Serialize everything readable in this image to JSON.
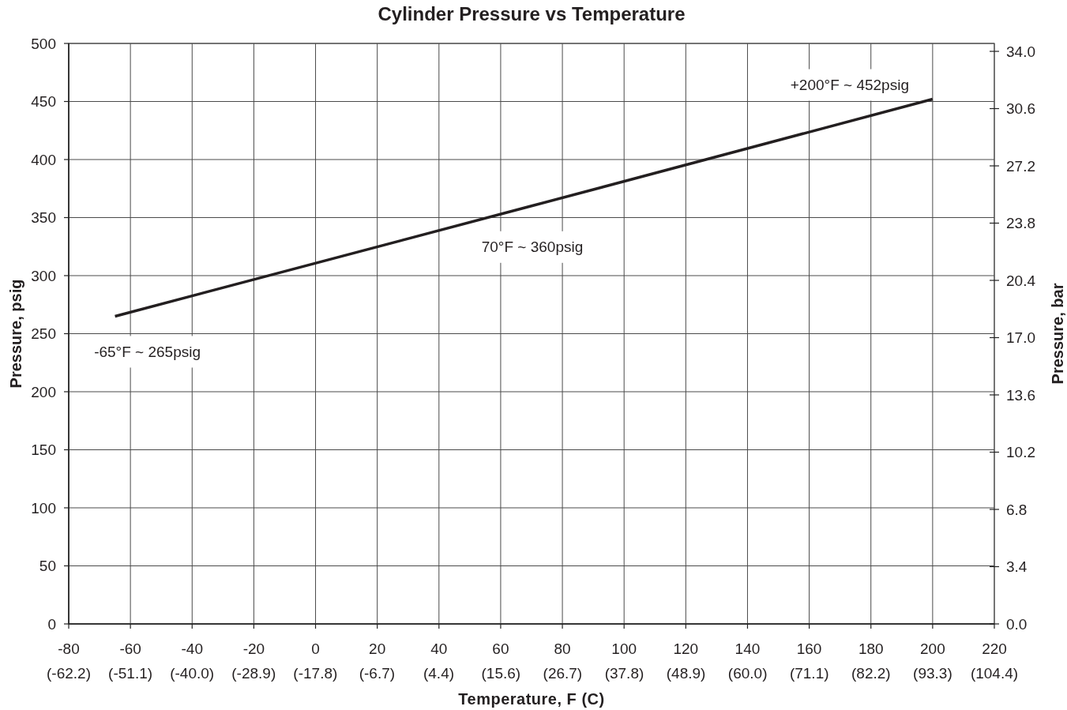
{
  "chart_data": {
    "type": "line",
    "title": "Cylinder Pressure vs Temperature",
    "xlabel": "Temperature, F (C)",
    "ylabel": "Pressure, psig",
    "y2label": "Pressure, bar",
    "x": [
      -65,
      70,
      200
    ],
    "values": [
      265,
      360,
      452
    ],
    "color": "#231f20",
    "line_style": "solid",
    "xlim": [
      -80,
      220
    ],
    "xticks": [
      -80,
      -60,
      -40,
      -20,
      0,
      20,
      40,
      60,
      80,
      100,
      120,
      140,
      160,
      180,
      200,
      220
    ],
    "x2lim": [
      -62.2,
      104.4
    ],
    "x2ticks": [
      {
        "value": -62.2,
        "label": "(-62.2)"
      },
      {
        "value": -51.1,
        "label": "(-51.1)"
      },
      {
        "value": -40,
        "label": "(-40.0)"
      },
      {
        "value": -28.9,
        "label": "(-28.9)"
      },
      {
        "value": -17.8,
        "label": "(-17.8)"
      },
      {
        "value": -6.7,
        "label": "(-6.7)"
      },
      {
        "value": 4.4,
        "label": "(4.4)"
      },
      {
        "value": 15.6,
        "label": "(15.6)"
      },
      {
        "value": 26.7,
        "label": "(26.7)"
      },
      {
        "value": 37.8,
        "label": "(37.8)"
      },
      {
        "value": 48.9,
        "label": "(48.9)"
      },
      {
        "value": 60,
        "label": "(60.0)"
      },
      {
        "value": 71.1,
        "label": "(71.1)"
      },
      {
        "value": 82.2,
        "label": "(82.2)"
      },
      {
        "value": 93.3,
        "label": "(93.3)"
      },
      {
        "value": 104.4,
        "label": "(104.4)"
      }
    ],
    "ylim": [
      0,
      500
    ],
    "yticks": [
      0,
      50,
      100,
      150,
      200,
      250,
      300,
      350,
      400,
      450,
      500
    ],
    "y2lim": [
      0,
      34.47
    ],
    "y2ticks": [
      {
        "value": 0,
        "label": "0.0"
      },
      3.4,
      6.8,
      10.2,
      13.6,
      {
        "value": 17,
        "label": "17.0"
      },
      20.4,
      23.8,
      27.2,
      30.6,
      {
        "value": 34,
        "label": "34.0"
      }
    ],
    "grid": true,
    "annotations": [
      {
        "text": "-65°F ~ 265psig",
        "x": -65,
        "y": 265
      },
      {
        "text": "70°F ~ 360psig",
        "x": 70,
        "y": 360
      },
      {
        "text": "+200°F ~ 452psig",
        "x": 200,
        "y": 452
      }
    ]
  }
}
